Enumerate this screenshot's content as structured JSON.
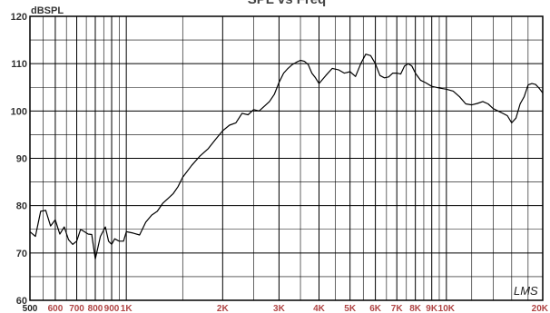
{
  "chart_data": {
    "type": "line",
    "title": "SPL vs Freq",
    "ylabel": "dBSPL",
    "xscale": "log",
    "xlim": [
      500,
      20000
    ],
    "ylim": [
      60,
      120
    ],
    "grid": true,
    "watermark": "LMS",
    "colors": {
      "line": "#000000",
      "xtick": "#b04545",
      "ytick": "#333333",
      "title": "#444444"
    },
    "yticks": [
      {
        "value": 60,
        "label": "60"
      },
      {
        "value": 70,
        "label": "70"
      },
      {
        "value": 80,
        "label": "80"
      },
      {
        "value": 90,
        "label": "90"
      },
      {
        "value": 100,
        "label": "100"
      },
      {
        "value": 110,
        "label": "110"
      },
      {
        "value": 120,
        "label": "120"
      }
    ],
    "xticks": [
      {
        "value": 500,
        "label": "500"
      },
      {
        "value": 600,
        "label": "600"
      },
      {
        "value": 700,
        "label": "700"
      },
      {
        "value": 800,
        "label": "800"
      },
      {
        "value": 900,
        "label": "900"
      },
      {
        "value": 1000,
        "label": "1K"
      },
      {
        "value": 2000,
        "label": "2K"
      },
      {
        "value": 3000,
        "label": "3K"
      },
      {
        "value": 4000,
        "label": "4K"
      },
      {
        "value": 5000,
        "label": "5K"
      },
      {
        "value": 6000,
        "label": "6K"
      },
      {
        "value": 7000,
        "label": "7K"
      },
      {
        "value": 8000,
        "label": "8K"
      },
      {
        "value": 9000,
        "label": "9K"
      },
      {
        "value": 10000,
        "label": "10K"
      },
      {
        "value": 20000,
        "label": "20K"
      }
    ],
    "series": [
      {
        "x": [
          500,
          520,
          540,
          560,
          580,
          600,
          620,
          640,
          660,
          680,
          700,
          720,
          740,
          760,
          780,
          800,
          830,
          860,
          880,
          900,
          920,
          950,
          980,
          1000,
          1050,
          1100,
          1150,
          1200,
          1250,
          1300,
          1350,
          1400,
          1450,
          1500,
          1600,
          1700,
          1800,
          1900,
          2000,
          2100,
          2200,
          2300,
          2400,
          2500,
          2600,
          2700,
          2800,
          2900,
          3000,
          3100,
          3200,
          3300,
          3400,
          3500,
          3600,
          3700,
          3800,
          3900,
          4000,
          4200,
          4400,
          4600,
          4800,
          5000,
          5200,
          5400,
          5600,
          5800,
          6000,
          6200,
          6400,
          6600,
          6800,
          7000,
          7200,
          7400,
          7600,
          7800,
          8000,
          8300,
          8600,
          9000,
          9300,
          9600,
          10000,
          10500,
          11000,
          11500,
          12000,
          12500,
          13000,
          13500,
          14000,
          14500,
          15000,
          15500,
          16000,
          16500,
          17000,
          17500,
          18000,
          18500,
          19000,
          19500,
          20000
        ],
        "y": [
          74.5,
          73.5,
          78.8,
          79.0,
          75.7,
          77.0,
          74.0,
          75.5,
          72.8,
          71.8,
          72.5,
          75.0,
          74.5,
          74.0,
          73.9,
          68.7,
          73.5,
          75.5,
          72.5,
          71.8,
          73.0,
          72.5,
          72.5,
          74.5,
          74.2,
          73.8,
          76.5,
          78.0,
          78.8,
          80.5,
          81.5,
          82.5,
          84.0,
          86.0,
          88.5,
          90.5,
          92.0,
          94.0,
          95.8,
          97.0,
          97.5,
          99.5,
          99.2,
          100.3,
          100.0,
          101.0,
          102.0,
          103.5,
          106.0,
          108.0,
          109.0,
          109.8,
          110.3,
          110.7,
          110.5,
          109.8,
          108.0,
          107.0,
          105.8,
          107.5,
          109.0,
          108.7,
          108.0,
          108.3,
          107.3,
          110.0,
          112.0,
          111.7,
          110.0,
          107.5,
          107.0,
          107.2,
          108.0,
          108.0,
          107.8,
          109.5,
          110.0,
          109.5,
          108.0,
          106.5,
          106.0,
          105.2,
          105.0,
          104.8,
          104.6,
          104.2,
          103.0,
          101.5,
          101.3,
          101.6,
          102.0,
          101.5,
          100.5,
          100.0,
          99.5,
          99.0,
          97.5,
          98.5,
          101.5,
          103.0,
          105.5,
          105.8,
          105.6,
          104.8,
          103.8
        ]
      }
    ]
  }
}
